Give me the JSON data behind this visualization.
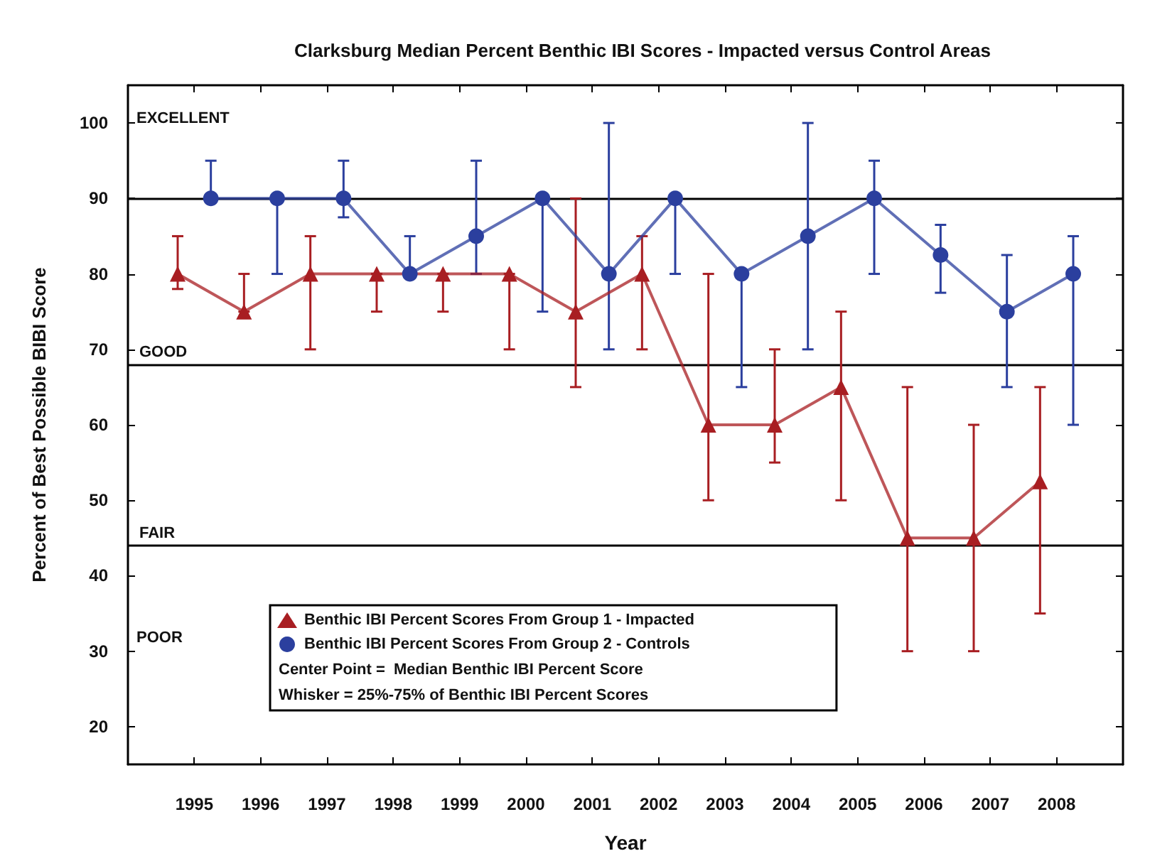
{
  "chart_data": {
    "type": "line",
    "title": "Clarksburg Median Percent Benthic IBI Scores - Impacted versus Control Areas",
    "xlabel": "Year",
    "ylabel": "Percent of Best Possible BIBI Score",
    "xlim": [
      1994,
      2009
    ],
    "xticks": [
      1995,
      1996,
      1997,
      1998,
      1999,
      2000,
      2001,
      2002,
      2003,
      2004,
      2005,
      2006,
      2007,
      2008
    ],
    "ylim": [
      15,
      105
    ],
    "yticks": [
      20,
      30,
      40,
      50,
      60,
      70,
      80,
      90,
      100
    ],
    "series": [
      {
        "name": "Benthic IBI Percent Scores From Group 1 - Impacted",
        "color": "#a81e22",
        "marker": "triangle",
        "x": [
          1994.75,
          1995.75,
          1996.75,
          1997.75,
          1998.75,
          1999.75,
          2000.75,
          2001.75,
          2002.75,
          2003.75,
          2004.75,
          2005.75,
          2006.75,
          2007.75
        ],
        "values": [
          80,
          75,
          80,
          80,
          80,
          80,
          75,
          80,
          60,
          60,
          65,
          45,
          45,
          52.5
        ],
        "errors": [
          [
            78,
            85
          ],
          [
            75,
            80
          ],
          [
            70,
            85
          ],
          [
            75,
            80
          ],
          [
            75,
            80
          ],
          [
            70,
            80
          ],
          [
            65,
            90
          ],
          [
            70,
            85
          ],
          [
            50,
            80
          ],
          [
            55,
            70
          ],
          [
            50,
            75
          ],
          [
            30,
            65
          ],
          [
            30,
            60
          ],
          [
            35,
            65
          ]
        ]
      },
      {
        "name": "Benthic IBI Percent Scores From Group 2 - Controls",
        "color": "#2b3f9e",
        "marker": "circle",
        "x": [
          1995.25,
          1996.25,
          1997.25,
          1998.25,
          1999.25,
          2000.25,
          2001.25,
          2002.25,
          2003.25,
          2004.25,
          2005.25,
          2006.25,
          2007.25,
          2008.25
        ],
        "values": [
          90,
          90,
          90,
          80,
          85,
          90,
          80,
          90,
          80,
          85,
          90,
          82.5,
          75,
          80
        ],
        "errors": [
          [
            90,
            95
          ],
          [
            80,
            90
          ],
          [
            87.5,
            95
          ],
          [
            80,
            85
          ],
          [
            80,
            95
          ],
          [
            75,
            90
          ],
          [
            70,
            100
          ],
          [
            80,
            90
          ],
          [
            65,
            80
          ],
          [
            70,
            100
          ],
          [
            80,
            95
          ],
          [
            77.5,
            86.5
          ],
          [
            65,
            82.5
          ],
          [
            60,
            85
          ]
        ]
      }
    ],
    "ref_lines": [
      {
        "axis": "y",
        "value": 90
      },
      {
        "axis": "y",
        "value": 68,
        "label": "GOOD"
      },
      {
        "axis": "y",
        "value": 44,
        "label": "FAIR"
      }
    ],
    "annotations": [
      "EXCELLENT",
      "POOR",
      "Center Point =  Median Benthic IBI Percent Score",
      "Whisker = 25%-75% of Benthic IBI Percent Scores"
    ],
    "legend": "bottom left",
    "line_style": "solid"
  }
}
